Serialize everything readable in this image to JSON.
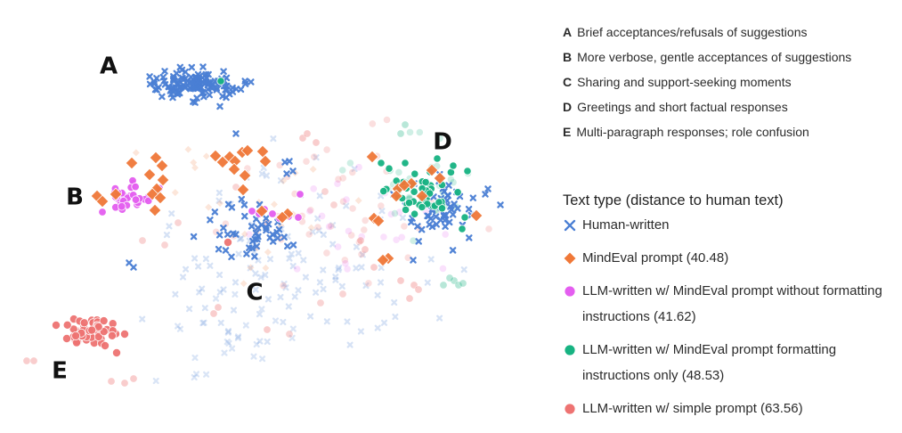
{
  "chart_data": {
    "type": "scatter",
    "title": "",
    "xlabel": "",
    "ylabel": "",
    "cluster_labels": [
      {
        "letter": "A",
        "description": "Brief acceptances/refusals of suggestions"
      },
      {
        "letter": "B",
        "description": "More verbose, gentle acceptances of suggestions"
      },
      {
        "letter": "C",
        "description": "Sharing and support-seeking moments"
      },
      {
        "letter": "D",
        "description": "Greetings and short factual responses"
      },
      {
        "letter": "E",
        "description": "Multi-paragraph responses; role confusion"
      }
    ],
    "legend_title": "Text type (distance to human text)",
    "series": [
      {
        "name": "Human-written",
        "marker": "x",
        "color": "#4a7fd4"
      },
      {
        "name": "MindEval prompt (40.48)",
        "marker": "diamond",
        "color": "#f07838"
      },
      {
        "name": "LLM-written w/ MindEval prompt without formatting instructions (41.62)",
        "marker": "circle",
        "color": "#e45ef0"
      },
      {
        "name": "LLM-written w/ MindEval prompt formatting instructions only (48.53)",
        "marker": "circle",
        "color": "#17b382"
      },
      {
        "name": "LLM-written w/ simple prompt (63.56)",
        "marker": "circle",
        "color": "#ee7372"
      }
    ]
  }
}
